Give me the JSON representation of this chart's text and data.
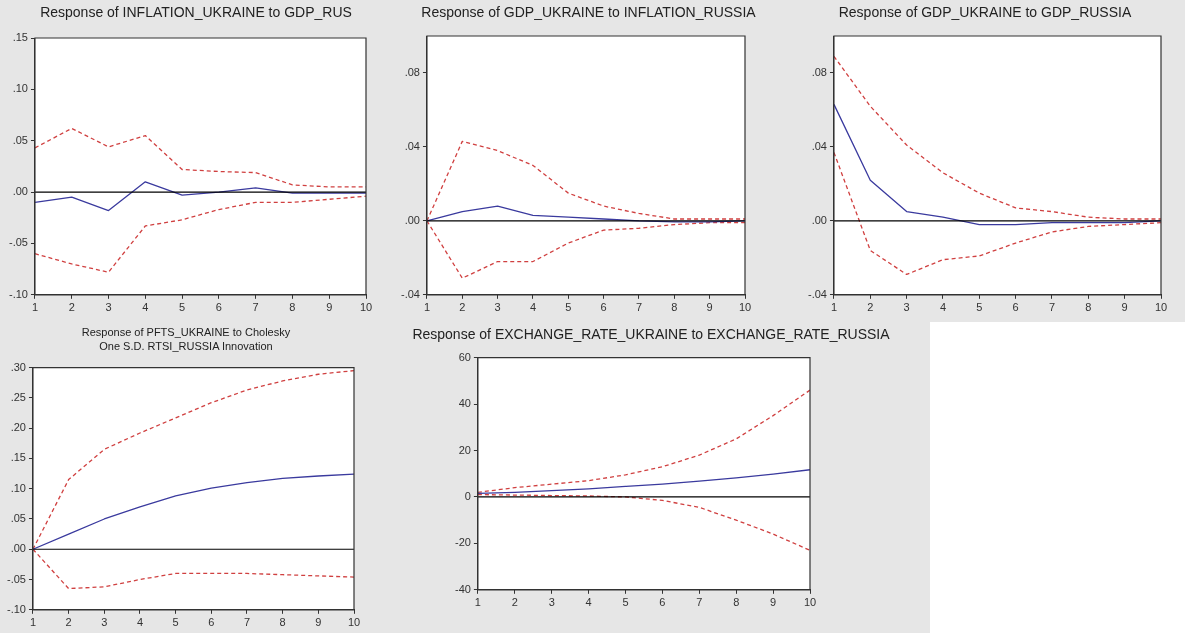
{
  "chart_data": [
    {
      "type": "line",
      "title": "Response of INFLATION_UKRAINE to GDP_RUS",
      "x": [
        1,
        2,
        3,
        4,
        5,
        6,
        7,
        8,
        9,
        10
      ],
      "xlim": [
        1,
        10
      ],
      "xticks": [
        1,
        2,
        3,
        4,
        5,
        6,
        7,
        8,
        9,
        10
      ],
      "ylim": [
        -0.1,
        0.15
      ],
      "yticks": [
        {
          "value": -0.1,
          "label": "-.10"
        },
        {
          "value": -0.05,
          "label": "-.05"
        },
        {
          "value": 0,
          "label": ".00"
        },
        {
          "value": 0.05,
          "label": ".05"
        },
        {
          "value": 0.1,
          "label": ".10"
        },
        {
          "value": 0.15,
          "label": ".15"
        }
      ],
      "grid": false,
      "legend": false,
      "marker": "none",
      "ref_lines": [
        {
          "axis": "y",
          "value": 0,
          "color": "#000000"
        }
      ],
      "series": [
        {
          "color": "#3a3a9e",
          "line_style": "solid",
          "values": [
            -0.01,
            -0.005,
            -0.018,
            0.01,
            -0.003,
            0.0,
            0.004,
            -0.001,
            -0.001,
            -0.001
          ]
        },
        {
          "color": "#d04040",
          "line_style": "dashed",
          "values": [
            0.043,
            0.062,
            0.044,
            0.055,
            0.022,
            0.02,
            0.019,
            0.007,
            0.005,
            0.005
          ]
        },
        {
          "color": "#d04040",
          "line_style": "dashed",
          "values": [
            -0.06,
            -0.07,
            -0.078,
            -0.033,
            -0.027,
            -0.017,
            -0.01,
            -0.01,
            -0.007,
            -0.004
          ]
        }
      ]
    },
    {
      "type": "line",
      "title": "Response of GDP_UKRAINE to INFLATION_RUSSIA",
      "x": [
        1,
        2,
        3,
        4,
        5,
        6,
        7,
        8,
        9,
        10
      ],
      "xlim": [
        1,
        10
      ],
      "xticks": [
        1,
        2,
        3,
        4,
        5,
        6,
        7,
        8,
        9,
        10
      ],
      "ylim": [
        -0.04,
        0.1
      ],
      "yticks": [
        {
          "value": -0.04,
          "label": "-.04"
        },
        {
          "value": 0,
          "label": ".00"
        },
        {
          "value": 0.04,
          "label": ".04"
        },
        {
          "value": 0.08,
          "label": ".08"
        }
      ],
      "grid": false,
      "legend": false,
      "marker": "none",
      "ref_lines": [
        {
          "axis": "y",
          "value": 0,
          "color": "#000000"
        }
      ],
      "series": [
        {
          "color": "#3a3a9e",
          "line_style": "solid",
          "values": [
            0,
            0.005,
            0.008,
            0.003,
            0.002,
            0.001,
            0.0,
            -0.0005,
            -0.0005,
            0
          ]
        },
        {
          "color": "#d04040",
          "line_style": "dashed",
          "values": [
            0,
            0.043,
            0.038,
            0.03,
            0.015,
            0.008,
            0.004,
            0.001,
            0.001,
            0.001
          ]
        },
        {
          "color": "#d04040",
          "line_style": "dashed",
          "values": [
            0,
            -0.031,
            -0.022,
            -0.022,
            -0.012,
            -0.005,
            -0.004,
            -0.002,
            -0.001,
            -0.001
          ]
        }
      ]
    },
    {
      "type": "line",
      "title": "Response of GDP_UKRAINE to GDP_RUSSIA",
      "x": [
        1,
        2,
        3,
        4,
        5,
        6,
        7,
        8,
        9,
        10
      ],
      "xlim": [
        1,
        10
      ],
      "xticks": [
        1,
        2,
        3,
        4,
        5,
        6,
        7,
        8,
        9,
        10
      ],
      "ylim": [
        -0.04,
        0.1
      ],
      "yticks": [
        {
          "value": -0.04,
          "label": "-.04"
        },
        {
          "value": 0,
          "label": ".00"
        },
        {
          "value": 0.04,
          "label": ".04"
        },
        {
          "value": 0.08,
          "label": ".08"
        }
      ],
      "grid": false,
      "legend": false,
      "marker": "none",
      "ref_lines": [
        {
          "axis": "y",
          "value": 0,
          "color": "#000000"
        }
      ],
      "series": [
        {
          "color": "#3a3a9e",
          "line_style": "solid",
          "values": [
            0.063,
            0.022,
            0.005,
            0.002,
            -0.002,
            -0.002,
            -0.001,
            -0.001,
            -0.001,
            0
          ]
        },
        {
          "color": "#d04040",
          "line_style": "dashed",
          "values": [
            0.089,
            0.062,
            0.041,
            0.026,
            0.015,
            0.007,
            0.005,
            0.002,
            0.001,
            0.001
          ]
        },
        {
          "color": "#d04040",
          "line_style": "dashed",
          "values": [
            0.037,
            -0.016,
            -0.029,
            -0.021,
            -0.019,
            -0.012,
            -0.006,
            -0.003,
            -0.002,
            -0.001
          ]
        }
      ]
    },
    {
      "type": "line",
      "title": "Response of PFTS_UKRAINE to Cholesky\nOne S.D. RTSI_RUSSIA Innovation",
      "x": [
        1,
        2,
        3,
        4,
        5,
        6,
        7,
        8,
        9,
        10
      ],
      "xlim": [
        1,
        10
      ],
      "xticks": [
        1,
        2,
        3,
        4,
        5,
        6,
        7,
        8,
        9,
        10
      ],
      "ylim": [
        -0.1,
        0.3
      ],
      "yticks": [
        {
          "value": -0.1,
          "label": "-.10"
        },
        {
          "value": -0.05,
          "label": "-.05"
        },
        {
          "value": 0,
          "label": ".00"
        },
        {
          "value": 0.05,
          "label": ".05"
        },
        {
          "value": 0.1,
          "label": ".10"
        },
        {
          "value": 0.15,
          "label": ".15"
        },
        {
          "value": 0.2,
          "label": ".20"
        },
        {
          "value": 0.25,
          "label": ".25"
        },
        {
          "value": 0.3,
          "label": ".30"
        }
      ],
      "grid": false,
      "legend": false,
      "marker": "none",
      "ref_lines": [
        {
          "axis": "y",
          "value": 0,
          "color": "#000000"
        }
      ],
      "series": [
        {
          "color": "#3a3a9e",
          "line_style": "solid",
          "values": [
            0,
            0.025,
            0.05,
            0.07,
            0.088,
            0.101,
            0.11,
            0.117,
            0.121,
            0.124
          ]
        },
        {
          "color": "#d04040",
          "line_style": "dashed",
          "values": [
            0,
            0.115,
            0.165,
            0.192,
            0.217,
            0.242,
            0.263,
            0.278,
            0.289,
            0.295
          ]
        },
        {
          "color": "#d04040",
          "line_style": "dashed",
          "values": [
            0,
            -0.065,
            -0.062,
            -0.05,
            -0.04,
            -0.04,
            -0.04,
            -0.042,
            -0.044,
            -0.046
          ]
        }
      ]
    },
    {
      "type": "line",
      "title": "Response of EXCHANGE_RATE_UKRAINE to EXCHANGE_RATE_RUSSIA",
      "x": [
        1,
        2,
        3,
        4,
        5,
        6,
        7,
        8,
        9,
        10
      ],
      "xlim": [
        1,
        10
      ],
      "xticks": [
        1,
        2,
        3,
        4,
        5,
        6,
        7,
        8,
        9,
        10
      ],
      "ylim": [
        -40,
        60
      ],
      "yticks": [
        -40,
        -20,
        0,
        20,
        40,
        60
      ],
      "grid": false,
      "legend": false,
      "marker": "none",
      "ref_lines": [
        {
          "axis": "y",
          "value": 0,
          "color": "#000000"
        }
      ],
      "series": [
        {
          "color": "#3a3a9e",
          "line_style": "solid",
          "values": [
            1.5,
            2,
            2.7,
            3.5,
            4.5,
            5.5,
            6.8,
            8.2,
            9.8,
            11.7
          ]
        },
        {
          "color": "#d04040",
          "line_style": "dashed",
          "values": [
            2,
            4,
            5.5,
            7,
            9.5,
            13,
            18,
            25,
            35,
            46
          ]
        },
        {
          "color": "#d04040",
          "line_style": "dashed",
          "values": [
            1,
            0.8,
            0.6,
            0.4,
            0,
            -1.5,
            -4.5,
            -10,
            -16,
            -23
          ]
        }
      ]
    }
  ]
}
